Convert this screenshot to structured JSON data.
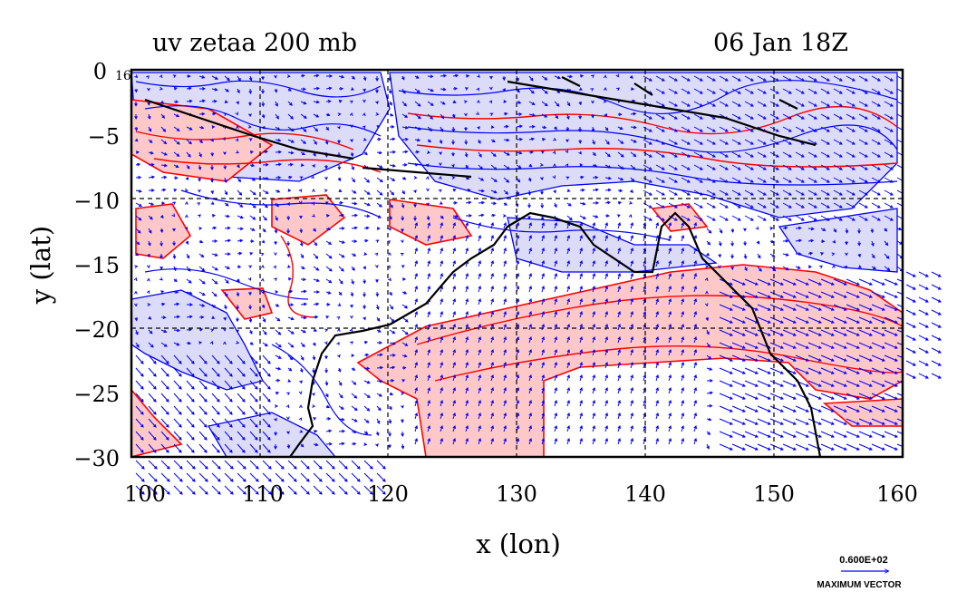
{
  "plot": {
    "title": "uv zetaa 200 mb",
    "timestamp": "06 Jan 18Z",
    "xlabel": "x (lon)",
    "ylabel": "y (lat)",
    "corner_label": "16",
    "legend_value": "0.600E+02",
    "legend_label": "MAXIMUM VECTOR"
  },
  "axes": {
    "x_range": [
      100,
      160
    ],
    "y_range": [
      -30,
      0
    ],
    "x_ticks": [
      "100",
      "110",
      "120",
      "130",
      "140",
      "150",
      "160"
    ],
    "y_ticks": [
      "0",
      "−5",
      "−10",
      "−15",
      "−20",
      "−25",
      "−30"
    ]
  },
  "colors": {
    "positive_contour": "#ff0000",
    "positive_fill": "#ffc8c8",
    "negative_contour": "#0000ff",
    "negative_fill": "#dcdcf8",
    "vectors": "#0000ff",
    "coastline": "#000000",
    "grid": "#000000"
  },
  "chart_data": {
    "type": "map",
    "field": "absolute vorticity (zetaa) with wind vectors (uv)",
    "level": "200 mb",
    "grid": "dashed at 10° lon / 5° lat",
    "max_vector": 60
  }
}
